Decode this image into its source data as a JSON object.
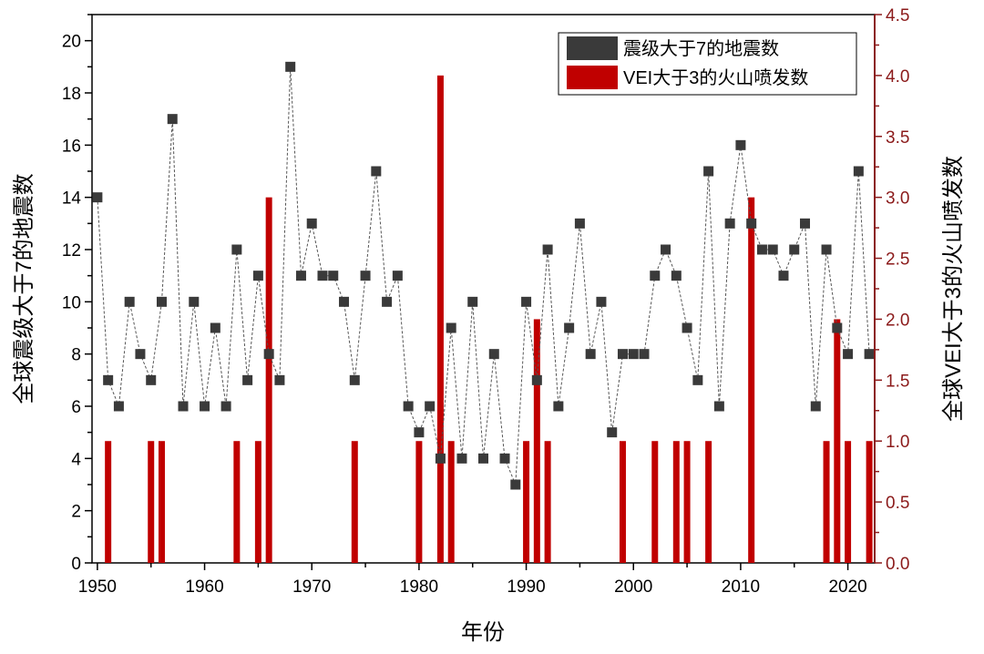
{
  "chart_data": {
    "type": "bar+line",
    "xlabel": "年份",
    "ylabel_left": "全球震级大于7的地震数",
    "ylabel_right": "全球VEI大于3的火山喷发数",
    "xlim": [
      1949.5,
      2022.5
    ],
    "ylim_left": [
      0,
      21
    ],
    "ylim_right": [
      0,
      4.5
    ],
    "x_ticks": [
      1950,
      1960,
      1970,
      1980,
      1990,
      2000,
      2010,
      2020
    ],
    "y_ticks_left": [
      0,
      2,
      4,
      6,
      8,
      10,
      12,
      14,
      16,
      18,
      20
    ],
    "y_ticks_right": [
      "0.0",
      "0.5",
      "1.0",
      "1.5",
      "2.0",
      "2.5",
      "3.0",
      "3.5",
      "4.0",
      "4.5"
    ],
    "legend_position": "top-right",
    "colors": {
      "earthquake": "#3a3a3a",
      "volcano": "#c00000",
      "right_axis": "#8b1a1a",
      "line": "#555555"
    },
    "series": [
      {
        "name": "震级大于7的地震数",
        "kind": "line-scatter",
        "axis": "left",
        "x": [
          1950,
          1951,
          1952,
          1953,
          1954,
          1955,
          1956,
          1957,
          1958,
          1959,
          1960,
          1961,
          1962,
          1963,
          1964,
          1965,
          1966,
          1967,
          1968,
          1969,
          1970,
          1971,
          1972,
          1973,
          1974,
          1975,
          1976,
          1977,
          1978,
          1979,
          1980,
          1981,
          1982,
          1983,
          1984,
          1985,
          1986,
          1987,
          1988,
          1989,
          1990,
          1991,
          1992,
          1993,
          1994,
          1995,
          1996,
          1997,
          1998,
          1999,
          2000,
          2001,
          2002,
          2003,
          2004,
          2005,
          2006,
          2007,
          2008,
          2009,
          2010,
          2011,
          2012,
          2013,
          2014,
          2015,
          2016,
          2017,
          2018,
          2019,
          2020,
          2021,
          2022
        ],
        "values": [
          14,
          7,
          6,
          10,
          8,
          7,
          10,
          17,
          6,
          10,
          6,
          9,
          6,
          12,
          7,
          11,
          8,
          7,
          19,
          11,
          13,
          11,
          11,
          10,
          7,
          11,
          15,
          10,
          11,
          6,
          5,
          6,
          4,
          9,
          4,
          10,
          4,
          8,
          4,
          3,
          10,
          7,
          12,
          6,
          9,
          13,
          8,
          10,
          5,
          8,
          8,
          8,
          11,
          12,
          11,
          9,
          7,
          15,
          6,
          13,
          16,
          13,
          12,
          12,
          11,
          12,
          13,
          6,
          12,
          9,
          8,
          15,
          8
        ]
      },
      {
        "name": "VEI大于3的火山喷发数",
        "kind": "bar",
        "axis": "right",
        "x": [
          1951,
          1955,
          1956,
          1963,
          1965,
          1966,
          1974,
          1980,
          1982,
          1983,
          1990,
          1991,
          1992,
          1999,
          2002,
          2004,
          2005,
          2007,
          2011,
          2018,
          2019,
          2020,
          2022
        ],
        "values": [
          1,
          1,
          1,
          1,
          1,
          3,
          1,
          1,
          4,
          1,
          1,
          2,
          1,
          1,
          1,
          1,
          1,
          1,
          3,
          1,
          2,
          1,
          1
        ]
      }
    ]
  }
}
